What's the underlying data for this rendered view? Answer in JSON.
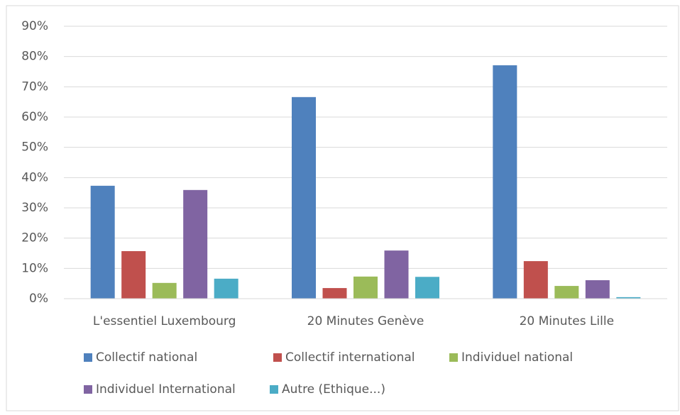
{
  "chart_data": {
    "type": "bar",
    "categories": [
      "L'essentiel Luxembourg",
      "20 Minutes Genève",
      "20 Minutes Lille"
    ],
    "series": [
      {
        "name": "Collectif national",
        "color": "#4f81bd",
        "values": [
          37.3,
          66.6,
          77.1
        ]
      },
      {
        "name": "Collectif international",
        "color": "#c0504d",
        "values": [
          15.7,
          3.5,
          12.4
        ]
      },
      {
        "name": "Individuel national",
        "color": "#9bbb59",
        "values": [
          5.2,
          7.3,
          4.2
        ]
      },
      {
        "name": "Individuel International",
        "color": "#8064a2",
        "values": [
          35.9,
          15.9,
          6.1
        ]
      },
      {
        "name": "Autre (Ethique...)",
        "color": "#4bacc6",
        "values": [
          6.6,
          7.2,
          0.5
        ]
      }
    ],
    "ylim": [
      0,
      90
    ],
    "yticks": [
      {
        "value": 0,
        "label": "0%"
      },
      {
        "value": 10,
        "label": "10%"
      },
      {
        "value": 20,
        "label": "20%"
      },
      {
        "value": 30,
        "label": "30%"
      },
      {
        "value": 40,
        "label": "40%"
      },
      {
        "value": 50,
        "label": "50%"
      },
      {
        "value": 60,
        "label": "60%"
      },
      {
        "value": 70,
        "label": "70%"
      },
      {
        "value": 80,
        "label": "80%"
      },
      {
        "value": 90,
        "label": "90%"
      }
    ],
    "grid": true
  }
}
